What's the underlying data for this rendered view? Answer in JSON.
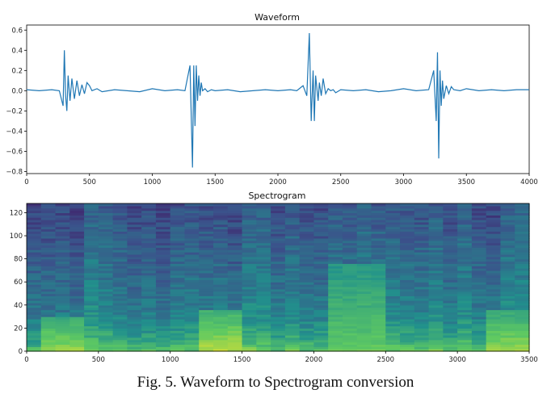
{
  "caption": "Fig. 5. Waveform to Spectrogram conversion",
  "chart_data": [
    {
      "type": "line",
      "title": "Waveform",
      "xlabel": "",
      "ylabel": "",
      "xlim": [
        0,
        4000
      ],
      "ylim": [
        -0.82,
        0.65
      ],
      "xticks": [
        0,
        500,
        1000,
        1500,
        2000,
        2500,
        3000,
        3500,
        4000
      ],
      "yticks": [
        0.6,
        0.4,
        0.2,
        0.0,
        -0.2,
        -0.4,
        -0.6,
        -0.8
      ],
      "xtick_labels": [
        "0",
        "500",
        "1000",
        "1500",
        "2000",
        "2500",
        "3000",
        "3500",
        "4000"
      ],
      "ytick_labels": [
        "0.6",
        "0.4",
        "0.2",
        "0.0",
        "−0.2",
        "−0.4",
        "−0.6",
        "−0.8"
      ],
      "grid": false,
      "color": "#1f77b4",
      "series": [
        {
          "x": [
            0,
            100,
            200,
            260,
            290,
            300,
            310,
            320,
            330,
            345,
            360,
            380,
            400,
            420,
            440,
            460,
            480,
            500,
            520,
            560,
            600,
            700,
            800,
            900,
            1000,
            1100,
            1200,
            1260,
            1300,
            1310,
            1320,
            1330,
            1340,
            1350,
            1360,
            1370,
            1380,
            1390,
            1400,
            1420,
            1440,
            1470,
            1500,
            1600,
            1700,
            1800,
            1900,
            2000,
            2100,
            2150,
            2200,
            2230,
            2250,
            2265,
            2280,
            2290,
            2300,
            2320,
            2330,
            2345,
            2360,
            2380,
            2400,
            2420,
            2440,
            2460,
            2500,
            2600,
            2700,
            2800,
            2900,
            3000,
            3100,
            3200,
            3240,
            3260,
            3270,
            3280,
            3290,
            3300,
            3310,
            3320,
            3340,
            3360,
            3380,
            3400,
            3450,
            3500,
            3600,
            3700,
            3800,
            3900,
            4000
          ],
          "y": [
            0.01,
            0.0,
            0.01,
            0.0,
            -0.15,
            0.4,
            -0.05,
            -0.2,
            0.15,
            -0.1,
            0.12,
            -0.08,
            0.1,
            -0.05,
            0.06,
            -0.03,
            0.08,
            0.05,
            0.0,
            0.02,
            -0.01,
            0.01,
            0.0,
            -0.01,
            0.02,
            0.0,
            0.01,
            0.0,
            0.25,
            -0.25,
            -0.76,
            0.25,
            -0.35,
            0.25,
            -0.1,
            0.15,
            -0.05,
            0.08,
            0.0,
            0.02,
            -0.01,
            0.01,
            0.0,
            0.01,
            -0.01,
            0.0,
            0.01,
            0.0,
            0.01,
            0.0,
            0.05,
            -0.05,
            0.57,
            -0.3,
            0.2,
            -0.3,
            0.15,
            -0.1,
            0.08,
            -0.05,
            0.12,
            -0.03,
            0.02,
            0.0,
            0.01,
            -0.02,
            0.01,
            0.0,
            0.01,
            -0.01,
            0.0,
            0.02,
            0.0,
            0.01,
            0.2,
            -0.3,
            0.38,
            -0.67,
            0.2,
            -0.15,
            0.1,
            -0.08,
            0.05,
            -0.03,
            0.04,
            0.01,
            0.0,
            0.02,
            0.0,
            0.01,
            0.0,
            0.01,
            0.01
          ]
        }
      ]
    },
    {
      "type": "heatmap",
      "title": "Spectrogram",
      "xlabel": "",
      "ylabel": "",
      "xlim": [
        0,
        3500
      ],
      "ylim": [
        0,
        128
      ],
      "xticks": [
        0,
        500,
        1000,
        1500,
        2000,
        2500,
        3000,
        3500
      ],
      "yticks": [
        0,
        20,
        40,
        60,
        80,
        100,
        120
      ],
      "colormap": "viridis",
      "high_energy_bands": [
        {
          "x": [
            130,
            400
          ],
          "y_max": 30,
          "level": 0.85
        },
        {
          "x": [
            1200,
            1450
          ],
          "y_max": 35,
          "level": 0.9
        },
        {
          "x": [
            2150,
            2450
          ],
          "y_max": 75,
          "level": 0.75
        },
        {
          "x": [
            3200,
            3500
          ],
          "y_max": 35,
          "level": 0.85
        }
      ],
      "base_gradient": [
        {
          "y": 0,
          "level": 0.75
        },
        {
          "y": 10,
          "level": 0.6
        },
        {
          "y": 30,
          "level": 0.45
        },
        {
          "y": 60,
          "level": 0.38
        },
        {
          "y": 90,
          "level": 0.32
        },
        {
          "y": 128,
          "level": 0.25
        }
      ]
    }
  ]
}
